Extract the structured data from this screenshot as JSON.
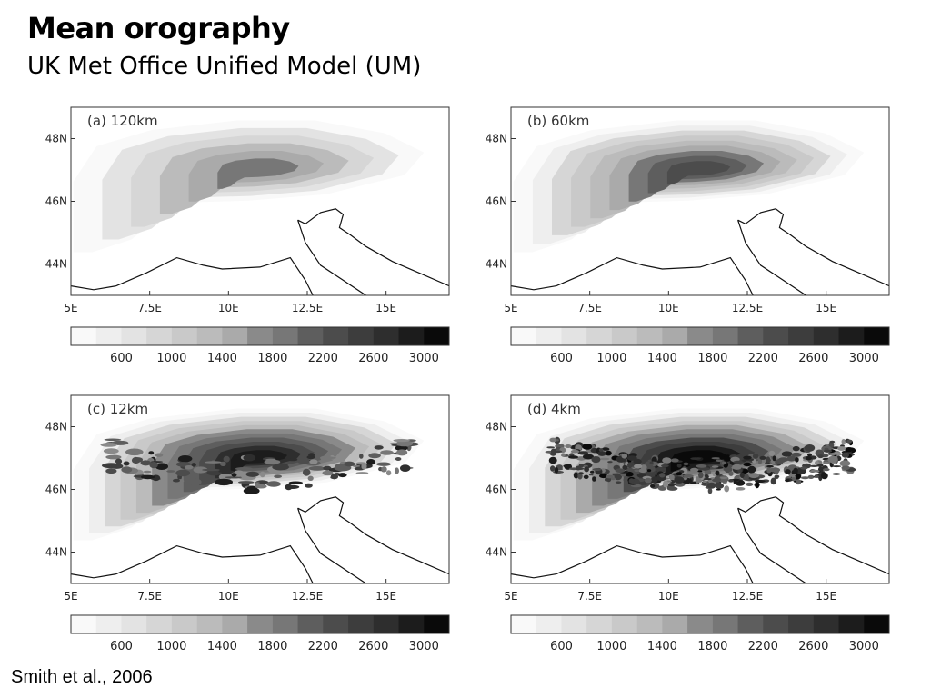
{
  "header": {
    "title": "Mean orography",
    "subtitle": "UK Met Office Unified Model (UM)"
  },
  "citation": "Smith et al., 2006",
  "colorbar": {
    "ticks": [
      "600",
      "1000",
      "1400",
      "1800",
      "2200",
      "2600",
      "3000"
    ],
    "levels": [
      200,
      400,
      600,
      800,
      1000,
      1200,
      1400,
      1600,
      1800,
      2000,
      2200,
      2400,
      2600,
      2800,
      3000
    ],
    "colors": [
      "#f9f9f9",
      "#eeeeee",
      "#e3e3e3",
      "#d6d6d6",
      "#c9c9c9",
      "#bbbbbb",
      "#aaaaaa",
      "#8a8a8a",
      "#777777",
      "#5e5e5e",
      "#4c4c4c",
      "#3d3d3d",
      "#2e2e2e",
      "#1c1c1c",
      "#0a0a0a"
    ]
  },
  "chart_data": [
    {
      "type": "heatmap",
      "panel_label": "(a) 120km",
      "x_ticks": [
        "5E",
        "7.5E",
        "10E",
        "12.5E",
        "15E"
      ],
      "y_ticks": [
        "48N",
        "46N",
        "44N"
      ],
      "xlim": [
        5,
        17
      ],
      "ylim": [
        43,
        49
      ],
      "peak_level": 1800
    },
    {
      "type": "heatmap",
      "panel_label": "(b) 60km",
      "x_ticks": [
        "5E",
        "7.5E",
        "10E",
        "12.5E",
        "15E"
      ],
      "y_ticks": [
        "48N",
        "46N",
        "44N"
      ],
      "xlim": [
        5,
        17
      ],
      "ylim": [
        43,
        49
      ],
      "peak_level": 2200
    },
    {
      "type": "heatmap",
      "panel_label": "(c) 12km",
      "x_ticks": [
        "5E",
        "7.5E",
        "10E",
        "12.5E",
        "15E"
      ],
      "y_ticks": [
        "48N",
        "46N",
        "44N"
      ],
      "xlim": [
        5,
        17
      ],
      "ylim": [
        43,
        49
      ],
      "peak_level": 2800
    },
    {
      "type": "heatmap",
      "panel_label": "(d) 4km",
      "x_ticks": [
        "5E",
        "7.5E",
        "10E",
        "12.5E",
        "15E"
      ],
      "y_ticks": [
        "48N",
        "46N",
        "44N"
      ],
      "xlim": [
        5,
        17
      ],
      "ylim": [
        43,
        49
      ],
      "peak_level": 3000
    }
  ]
}
